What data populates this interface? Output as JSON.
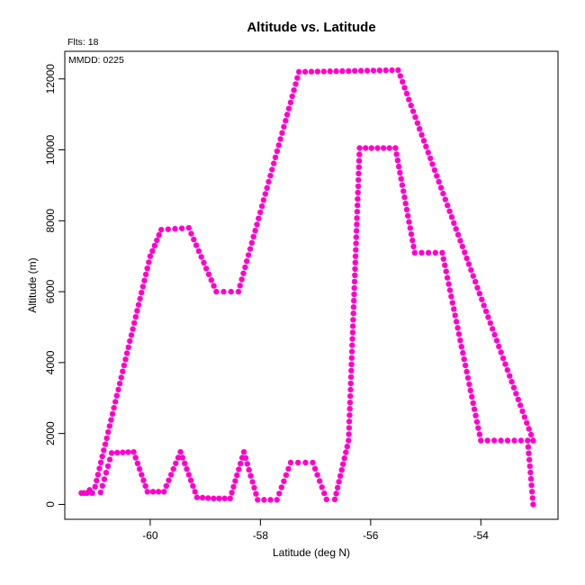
{
  "chart_data": {
    "type": "scatter",
    "title": "Altitude vs. Latitude",
    "subtitle": "Flts: 18",
    "annotation": "MMDD: 0225",
    "xlabel": "Latitude (deg N)",
    "ylabel": "Altitude (m)",
    "xlim": [
      -61.55,
      -52.6
    ],
    "ylim": [
      -420,
      12780
    ],
    "x_ticks": [
      -60,
      -58,
      -56,
      -54
    ],
    "y_ticks": [
      0,
      2000,
      4000,
      6000,
      8000,
      10000,
      12000
    ],
    "grid": false,
    "point_color": "#ff00cc",
    "profiles": [
      [
        [
          -61.25,
          320
        ],
        [
          -61.05,
          320
        ],
        [
          -60.9,
          340
        ],
        [
          -60.7,
          1450
        ],
        [
          -60.3,
          1480
        ],
        [
          -60.05,
          360
        ],
        [
          -59.75,
          360
        ],
        [
          -59.45,
          1480
        ],
        [
          -59.15,
          200
        ],
        [
          -58.85,
          170
        ],
        [
          -58.55,
          170
        ],
        [
          -58.3,
          1480
        ],
        [
          -58.05,
          130
        ],
        [
          -57.7,
          130
        ],
        [
          -57.45,
          1180
        ],
        [
          -57.05,
          1180
        ],
        [
          -56.8,
          140
        ],
        [
          -56.65,
          140
        ],
        [
          -56.4,
          1800
        ],
        [
          -56.2,
          10050
        ],
        [
          -55.55,
          10050
        ],
        [
          -55.2,
          7100
        ],
        [
          -54.7,
          7100
        ],
        [
          -54.0,
          1800
        ],
        [
          -53.15,
          1800
        ],
        [
          -53.05,
          0
        ]
      ],
      [
        [
          -61.2,
          320
        ],
        [
          -61.0,
          500
        ],
        [
          -60.0,
          7000
        ],
        [
          -59.8,
          7750
        ],
        [
          -59.3,
          7800
        ],
        [
          -58.8,
          6000
        ],
        [
          -58.4,
          6000
        ],
        [
          -57.3,
          12200
        ],
        [
          -55.5,
          12250
        ],
        [
          -53.05,
          1800
        ]
      ]
    ]
  }
}
